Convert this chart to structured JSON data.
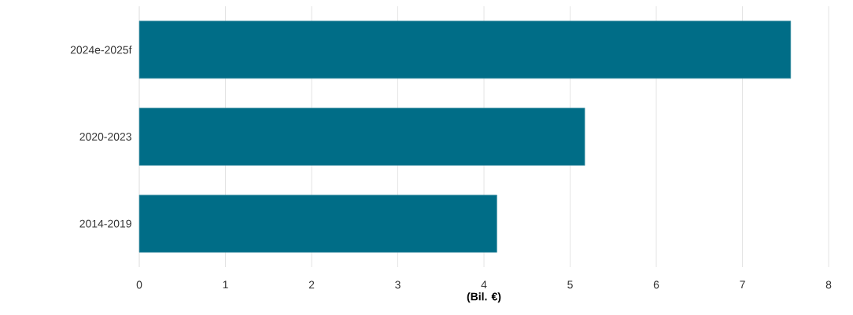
{
  "chart_data": {
    "type": "bar",
    "orientation": "horizontal",
    "categories": [
      "2024e-2025f",
      "2020-2023",
      "2014-2019"
    ],
    "values": [
      7.56,
      5.17,
      4.15
    ],
    "color": "#006d87",
    "xlabel": "(Bil. €)",
    "xlim": [
      0,
      8
    ],
    "xticks": [
      0,
      1,
      2,
      3,
      4,
      5,
      6,
      7,
      8
    ],
    "grid": "x"
  }
}
